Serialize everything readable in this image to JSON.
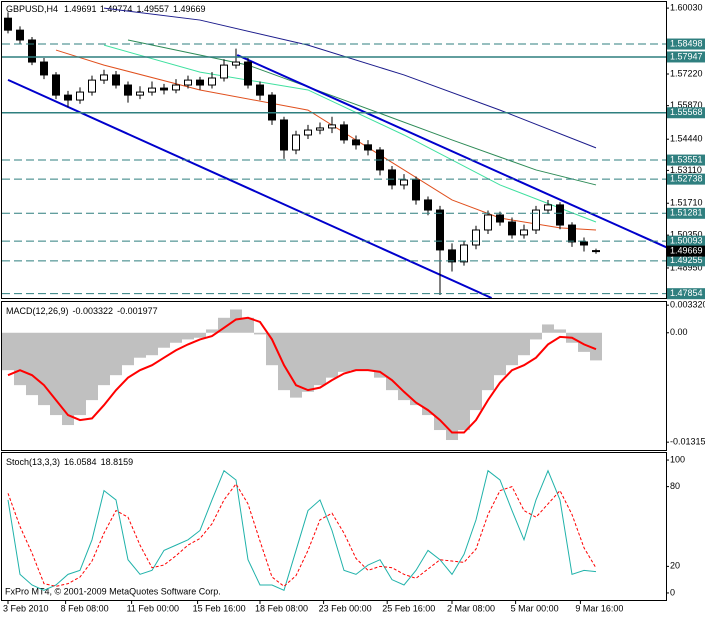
{
  "chart_data": [
    {
      "type": "candlestick",
      "title": "GBPUSD,H4",
      "open": [
        1.596,
        1.5909,
        1.5867,
        1.5773,
        1.5718,
        1.5632,
        1.5611,
        1.5645,
        1.5696,
        1.5718,
        1.5675,
        1.5632,
        1.5645,
        1.5662,
        1.5654,
        1.5675,
        1.5696,
        1.5675,
        1.5705,
        1.576,
        1.5773,
        1.5675,
        1.5632,
        1.5526,
        1.5398,
        1.5462,
        1.5483,
        1.5492,
        1.5505,
        1.5441,
        1.542,
        1.5398,
        1.5313,
        1.5249,
        1.527,
        1.5185,
        1.5142,
        1.4972,
        1.4921,
        1.4993,
        1.5057,
        1.5121,
        1.5091,
        1.5036,
        1.5057,
        1.5142,
        1.5164,
        1.5078,
        1.5006,
        1.49691
      ],
      "high": [
        1.5985,
        1.5925,
        1.588,
        1.579,
        1.573,
        1.565,
        1.5665,
        1.5715,
        1.574,
        1.5735,
        1.569,
        1.567,
        1.569,
        1.568,
        1.57,
        1.5715,
        1.571,
        1.573,
        1.5785,
        1.583,
        1.579,
        1.569,
        1.5645,
        1.554,
        1.548,
        1.5505,
        1.5515,
        1.554,
        1.552,
        1.546,
        1.544,
        1.541,
        1.533,
        1.5295,
        1.5285,
        1.52,
        1.516,
        1.5,
        1.501,
        1.5075,
        1.514,
        1.5135,
        1.511,
        1.508,
        1.516,
        1.5185,
        1.5175,
        1.509,
        1.5025,
        1.49774
      ],
      "low": [
        1.5895,
        1.585,
        1.576,
        1.57,
        1.5615,
        1.558,
        1.5595,
        1.563,
        1.568,
        1.566,
        1.56,
        1.5615,
        1.563,
        1.5635,
        1.564,
        1.566,
        1.5655,
        1.566,
        1.569,
        1.5745,
        1.566,
        1.561,
        1.5505,
        1.536,
        1.538,
        1.5445,
        1.5465,
        1.547,
        1.5425,
        1.54,
        1.5375,
        1.529,
        1.523,
        1.523,
        1.5165,
        1.512,
        1.478,
        1.488,
        1.4905,
        1.4975,
        1.504,
        1.5075,
        1.502,
        1.502,
        1.504,
        1.5125,
        1.506,
        1.4985,
        1.4965,
        1.49557
      ],
      "close": [
        1.5909,
        1.5867,
        1.5773,
        1.5718,
        1.5632,
        1.5611,
        1.5645,
        1.5696,
        1.5718,
        1.5675,
        1.5632,
        1.5645,
        1.5662,
        1.5654,
        1.5675,
        1.5696,
        1.5675,
        1.5705,
        1.576,
        1.5773,
        1.5675,
        1.5632,
        1.5526,
        1.5398,
        1.5462,
        1.5483,
        1.5492,
        1.5505,
        1.5441,
        1.542,
        1.5398,
        1.5313,
        1.5249,
        1.527,
        1.5185,
        1.5142,
        1.4972,
        1.4921,
        1.4993,
        1.5057,
        1.5121,
        1.5091,
        1.5036,
        1.5057,
        1.5142,
        1.5164,
        1.5078,
        1.5006,
        1.4993,
        1.49669
      ],
      "bull_color": "#ffffff",
      "bear_color": "#000000",
      "ylim": [
        1.4767,
        1.6029
      ],
      "yticks": [
        {
          "value": 1.6003,
          "label": "1.60030"
        },
        {
          "value": 1.5722,
          "label": "1.57220"
        },
        {
          "value": 1.5587,
          "label": "1.55870"
        },
        {
          "value": 1.5444,
          "label": "1.54440"
        },
        {
          "value": 1.5311,
          "label": "1.53110"
        },
        {
          "value": 1.5171,
          "label": "1.51710"
        },
        {
          "value": 1.5035,
          "label": "1.50350"
        },
        {
          "value": 1.4895,
          "label": "1.48950"
        }
      ],
      "level_color": "#2f7f7f",
      "levels": [
        {
          "value": 1.58498,
          "style": "dashed"
        },
        {
          "value": 1.57947,
          "style": "solid"
        },
        {
          "value": 1.55568,
          "style": "solid"
        },
        {
          "value": 1.53551,
          "style": "dashed"
        },
        {
          "value": 1.52738,
          "style": "dashed"
        },
        {
          "value": 1.51281,
          "style": "dashed"
        },
        {
          "value": 1.50093,
          "style": "dashed"
        },
        {
          "value": 1.49255,
          "style": "dashed"
        },
        {
          "value": 1.47854,
          "style": "dashed"
        }
      ],
      "trendlines": [
        {
          "color": "#0000cc",
          "from": [
            0,
            1.5697
          ],
          "to": [
            40.3,
            1.4767
          ]
        },
        {
          "color": "#0000cc",
          "from": [
            19.1,
            1.5803
          ],
          "to": [
            55,
            1.498
          ]
        }
      ],
      "moving_averages": [
        {
          "color": "#e0501e",
          "x": [
            4,
            8,
            16,
            25,
            33,
            37,
            41,
            46,
            49
          ],
          "values": [
            1.5824,
            1.576,
            1.5654,
            1.5568,
            1.5313,
            1.5185,
            1.5108,
            1.5066,
            1.5057
          ]
        },
        {
          "color": "#40e0a0",
          "x": [
            8,
            16,
            25,
            33,
            41,
            49
          ],
          "values": [
            1.5845,
            1.573,
            1.5654,
            1.5462,
            1.5249,
            1.5091
          ]
        },
        {
          "color": "#2e8b57",
          "x": [
            10,
            20,
            28,
            37,
            44,
            49
          ],
          "values": [
            1.5867,
            1.576,
            1.5611,
            1.5441,
            1.5313,
            1.5249
          ]
        },
        {
          "color": "#1c1c8c",
          "x": [
            8,
            16,
            25,
            33,
            41,
            49
          ],
          "values": [
            1.6003,
            1.5952,
            1.5845,
            1.5718,
            1.5568,
            1.5407
          ]
        }
      ]
    },
    {
      "type": "macd",
      "title": "MACD(12,26,9)",
      "histogram": {
        "color": "#c0c0c0",
        "values": [
          -0.0045,
          -0.0063,
          -0.0075,
          -0.0087,
          -0.0099,
          -0.0111,
          -0.0099,
          -0.0081,
          -0.0063,
          -0.0051,
          -0.0039,
          -0.003,
          -0.0027,
          -0.0018,
          -0.0012,
          -0.0008,
          -0.0006,
          0.0004,
          0.0018,
          0.0028,
          0.0018,
          -0.0002,
          -0.0039,
          -0.0069,
          -0.0078,
          -0.0071,
          -0.0063,
          -0.0054,
          -0.0047,
          -0.0045,
          -0.0045,
          -0.0054,
          -0.0069,
          -0.0081,
          -0.0087,
          -0.0099,
          -0.0117,
          -0.0129,
          -0.0117,
          -0.0093,
          -0.0069,
          -0.0051,
          -0.0039,
          -0.0027,
          -0.0008,
          0.001,
          0.0004,
          -0.0012,
          -0.0023,
          -0.003322
        ]
      },
      "signal": {
        "color": "#ff0000",
        "values": [
          -0.0051,
          -0.0045,
          -0.0051,
          -0.0063,
          -0.0081,
          -0.0099,
          -0.0105,
          -0.0103,
          -0.0087,
          -0.0069,
          -0.0054,
          -0.0045,
          -0.0039,
          -0.003,
          -0.0021,
          -0.0014,
          -0.0008,
          -0.0004,
          0.0006,
          0.0016,
          0.0018,
          0.0013,
          -0.0008,
          -0.0039,
          -0.0063,
          -0.0069,
          -0.0066,
          -0.0057,
          -0.0049,
          -0.0045,
          -0.0045,
          -0.0047,
          -0.0057,
          -0.0071,
          -0.0084,
          -0.0093,
          -0.0105,
          -0.012,
          -0.012,
          -0.0105,
          -0.0081,
          -0.006,
          -0.0045,
          -0.0039,
          -0.003,
          -0.0014,
          -0.0005,
          -0.0006,
          -0.0014,
          -0.001977
        ]
      },
      "ylim": [
        -0.0141,
        0.0037
      ],
      "yticks": [
        {
          "value": 0.00332,
          "label": "0.003320"
        },
        {
          "value": 0,
          "label": "0.00"
        },
        {
          "value": -0.013158,
          "label": "-0.013158"
        }
      ]
    },
    {
      "type": "stochastic",
      "title": "Stoch(13,3,3)",
      "main": {
        "color": "#20b2aa",
        "values": [
          70,
          14,
          6,
          2,
          6,
          14,
          17,
          40,
          77,
          70,
          25,
          14,
          17,
          32,
          36,
          40,
          47,
          70,
          92,
          85,
          25,
          6,
          6,
          2,
          32,
          62,
          70,
          47,
          17,
          14,
          21,
          25,
          10,
          6,
          17,
          32,
          25,
          14,
          29,
          55,
          92,
          85,
          62,
          40,
          70,
          92,
          70,
          14,
          17,
          16.0584
        ]
      },
      "signal": {
        "color": "#ff0000",
        "values": [
          75,
          50,
          30,
          7,
          5,
          7,
          12,
          24,
          45,
          62,
          57,
          36,
          19,
          21,
          28,
          36,
          41,
          52,
          70,
          82,
          67,
          39,
          12,
          5,
          13,
          32,
          55,
          60,
          45,
          26,
          17,
          20,
          19,
          14,
          11,
          18,
          25,
          24,
          23,
          33,
          59,
          77,
          80,
          62,
          57,
          67,
          77,
          59,
          34,
          18.8159
        ]
      },
      "ylim": [
        -5.3,
        105.3
      ],
      "yticks": [
        0,
        20,
        80,
        100
      ],
      "xticks": [
        {
          "value": 0,
          "label": "3 Feb 2010"
        },
        {
          "value": 4.8,
          "label": "8 Feb 08:00"
        },
        {
          "value": 10.3,
          "label": "11 Feb 00:00"
        },
        {
          "value": 15.8,
          "label": "15 Feb 16:00"
        },
        {
          "value": 21,
          "label": "18 Feb 08:00"
        },
        {
          "value": 26.3,
          "label": "23 Feb 00:00"
        },
        {
          "value": 31.6,
          "label": "25 Feb 16:00"
        },
        {
          "value": 37,
          "label": "2 Mar 08:00"
        },
        {
          "value": 42.3,
          "label": "5 Mar 00:00"
        },
        {
          "value": 47.7,
          "label": "9 Mar 16:00"
        }
      ],
      "footer": "FxPro MT4, © 2001-2009 MetaQuotes Software Corp."
    }
  ]
}
